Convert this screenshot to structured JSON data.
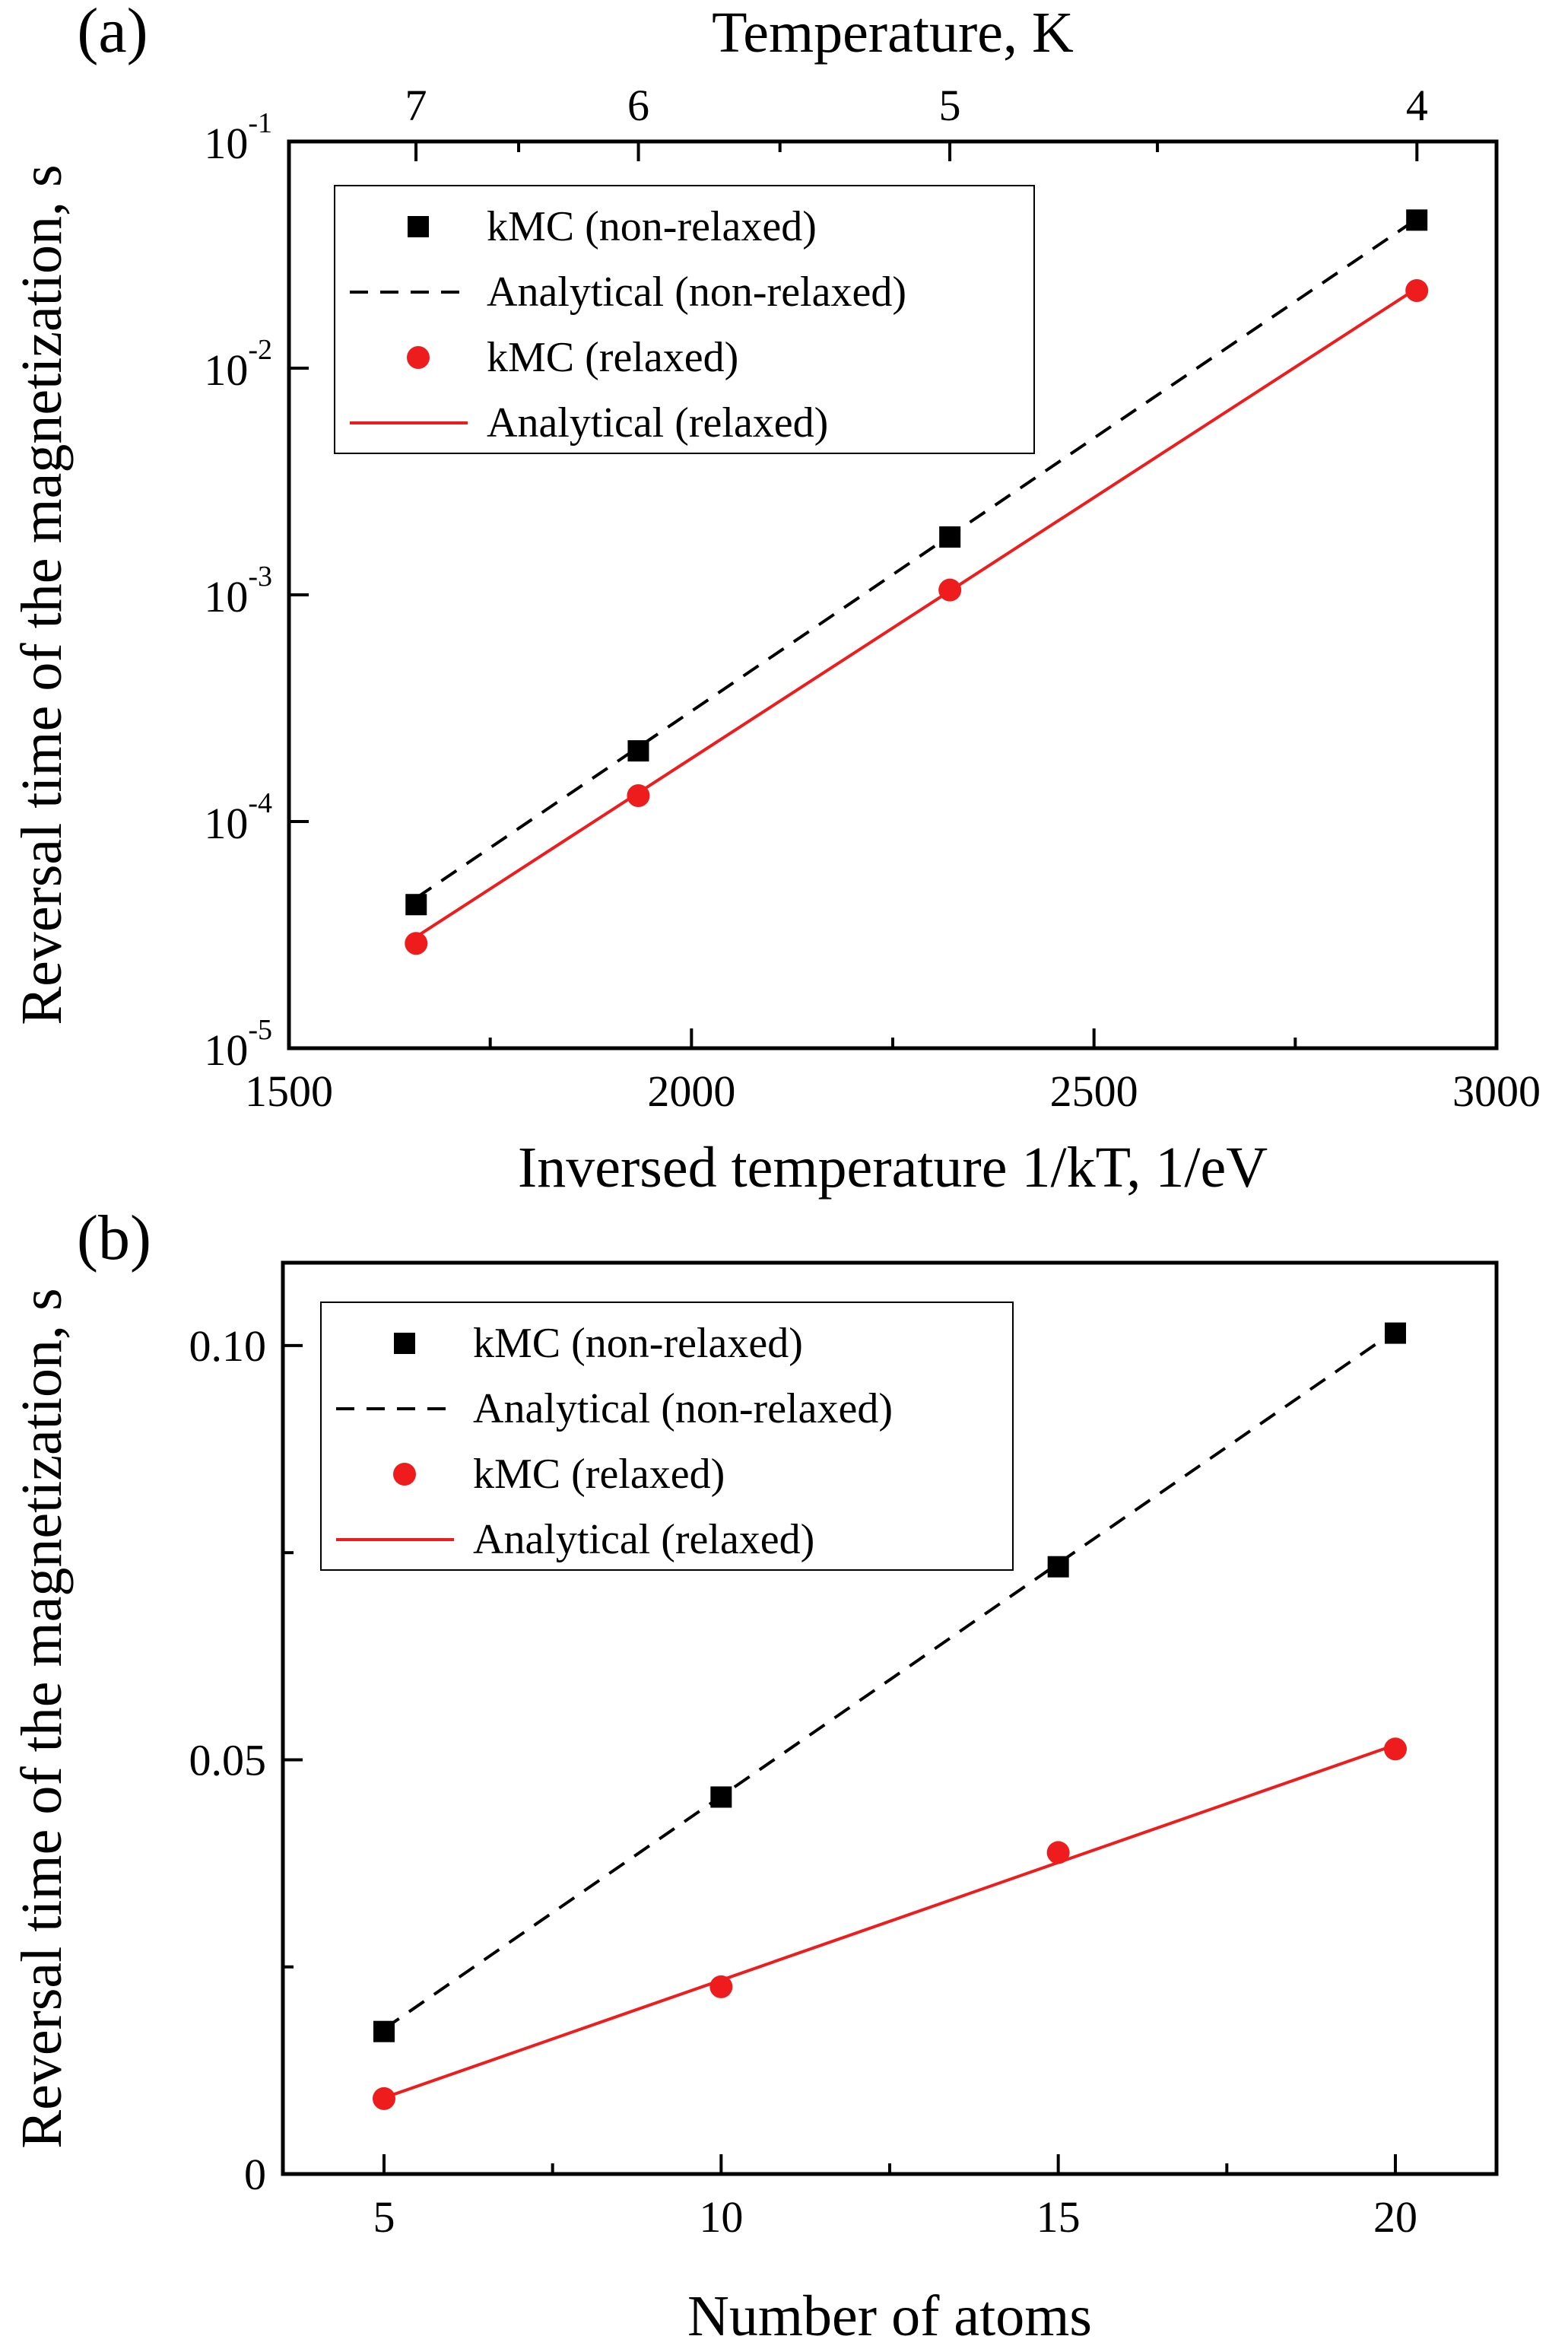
{
  "chart_data": [
    {
      "type": "scatter",
      "panel_label": "(a)",
      "top_axis": {
        "title": "Temperature, K",
        "ticks": [
          7,
          6,
          5,
          4
        ]
      },
      "xlabel": "Inversed temperature 1/kT, 1/eV",
      "ylabel": "Reversal time of the magnetization, s",
      "xlim": [
        1500,
        3000
      ],
      "ylim": [
        1e-05,
        0.1
      ],
      "yscale": "log",
      "x_ticks": [
        1500,
        2000,
        2500,
        3000
      ],
      "y_ticks": [
        {
          "base": "10",
          "exp": "-5",
          "value": 1e-05
        },
        {
          "base": "10",
          "exp": "-4",
          "value": 0.0001
        },
        {
          "base": "10",
          "exp": "-3",
          "value": 0.001
        },
        {
          "base": "10",
          "exp": "-2",
          "value": 0.01
        },
        {
          "base": "10",
          "exp": "-1",
          "value": 0.1
        }
      ],
      "legend_position": "top-left",
      "series": [
        {
          "name": "kMC (non-relaxed)",
          "kind": "marker-square",
          "color": "#000000",
          "x": [
            1658,
            1934,
            2321,
            2901
          ],
          "y": [
            4.3e-05,
            0.000205,
            0.0018,
            0.045
          ]
        },
        {
          "name": "Analytical (non-relaxed)",
          "kind": "line-dashed",
          "color": "#000000",
          "x": [
            1658,
            2901
          ],
          "y": [
            4.6e-05,
            0.0455
          ]
        },
        {
          "name": "kMC (relaxed)",
          "kind": "marker-circle",
          "color": "#ee1c1c",
          "x": [
            1658,
            1934,
            2321,
            2901
          ],
          "y": [
            2.9e-05,
            0.00013,
            0.00105,
            0.022
          ]
        },
        {
          "name": "Analytical (relaxed)",
          "kind": "line-solid",
          "color": "#ee1c1c",
          "x": [
            1658,
            2901
          ],
          "y": [
            3.1e-05,
            0.0225
          ]
        }
      ]
    },
    {
      "type": "scatter",
      "panel_label": "(b)",
      "xlabel": "Number of atoms",
      "ylabel": "Reversal time of the magnetization, s",
      "xlim": [
        3.5,
        21.5
      ],
      "ylim": [
        0,
        0.11
      ],
      "yscale": "linear",
      "x_ticks": [
        5,
        10,
        15,
        20
      ],
      "y_ticks": [
        {
          "label": "0",
          "value": 0
        },
        {
          "label": "0.05",
          "value": 0.05
        },
        {
          "label": "0.10",
          "value": 0.1
        }
      ],
      "legend_position": "top-left",
      "series": [
        {
          "name": "kMC (non-relaxed)",
          "kind": "marker-square",
          "color": "#000000",
          "x": [
            5,
            10,
            15,
            20
          ],
          "y": [
            0.0172,
            0.0455,
            0.0733,
            0.1015
          ]
        },
        {
          "name": "Analytical (non-relaxed)",
          "kind": "line-dashed",
          "color": "#000000",
          "x": [
            5,
            20
          ],
          "y": [
            0.0175,
            0.1018
          ]
        },
        {
          "name": "kMC (relaxed)",
          "kind": "marker-circle",
          "color": "#ee1c1c",
          "x": [
            5,
            10,
            15,
            20
          ],
          "y": [
            0.0091,
            0.0226,
            0.0388,
            0.0513
          ]
        },
        {
          "name": "Analytical (relaxed)",
          "kind": "line-solid",
          "color": "#ee1c1c",
          "x": [
            5,
            20
          ],
          "y": [
            0.0092,
            0.0518
          ]
        }
      ]
    }
  ]
}
